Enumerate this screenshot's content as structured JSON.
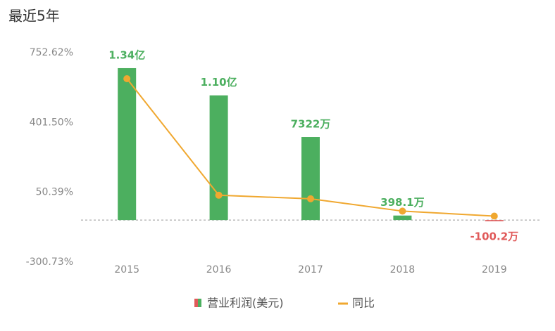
{
  "chart_data": {
    "type": "bar-line",
    "title": "最近5年",
    "categories": [
      "2015",
      "2016",
      "2017",
      "2018",
      "2019"
    ],
    "ylim": [
      -350,
      820
    ],
    "yticks": [
      {
        "value": 752.62,
        "label": "752.62%"
      },
      {
        "value": 401.5,
        "label": "401.50%"
      },
      {
        "value": 50.39,
        "label": "50.39%"
      },
      {
        "value": -300.73,
        "label": "-300.73%"
      }
    ],
    "y2lim": [
      -45800000,
      159400000
    ],
    "series": [
      {
        "name": "营业利润(美元)",
        "type": "bar",
        "axis": "y2",
        "color": "#4caf5f",
        "negative_color": "#e05a5a",
        "values": [
          134000000,
          110000000,
          73220000,
          3981000,
          -1002000
        ],
        "value_labels": [
          "1.34亿",
          "1.10亿",
          "7322万",
          "398.1万",
          "-100.2万"
        ]
      },
      {
        "name": "同比",
        "type": "line",
        "color": "#f0a830",
        "values": [
          622,
          36,
          18,
          -44,
          -69
        ]
      }
    ]
  }
}
